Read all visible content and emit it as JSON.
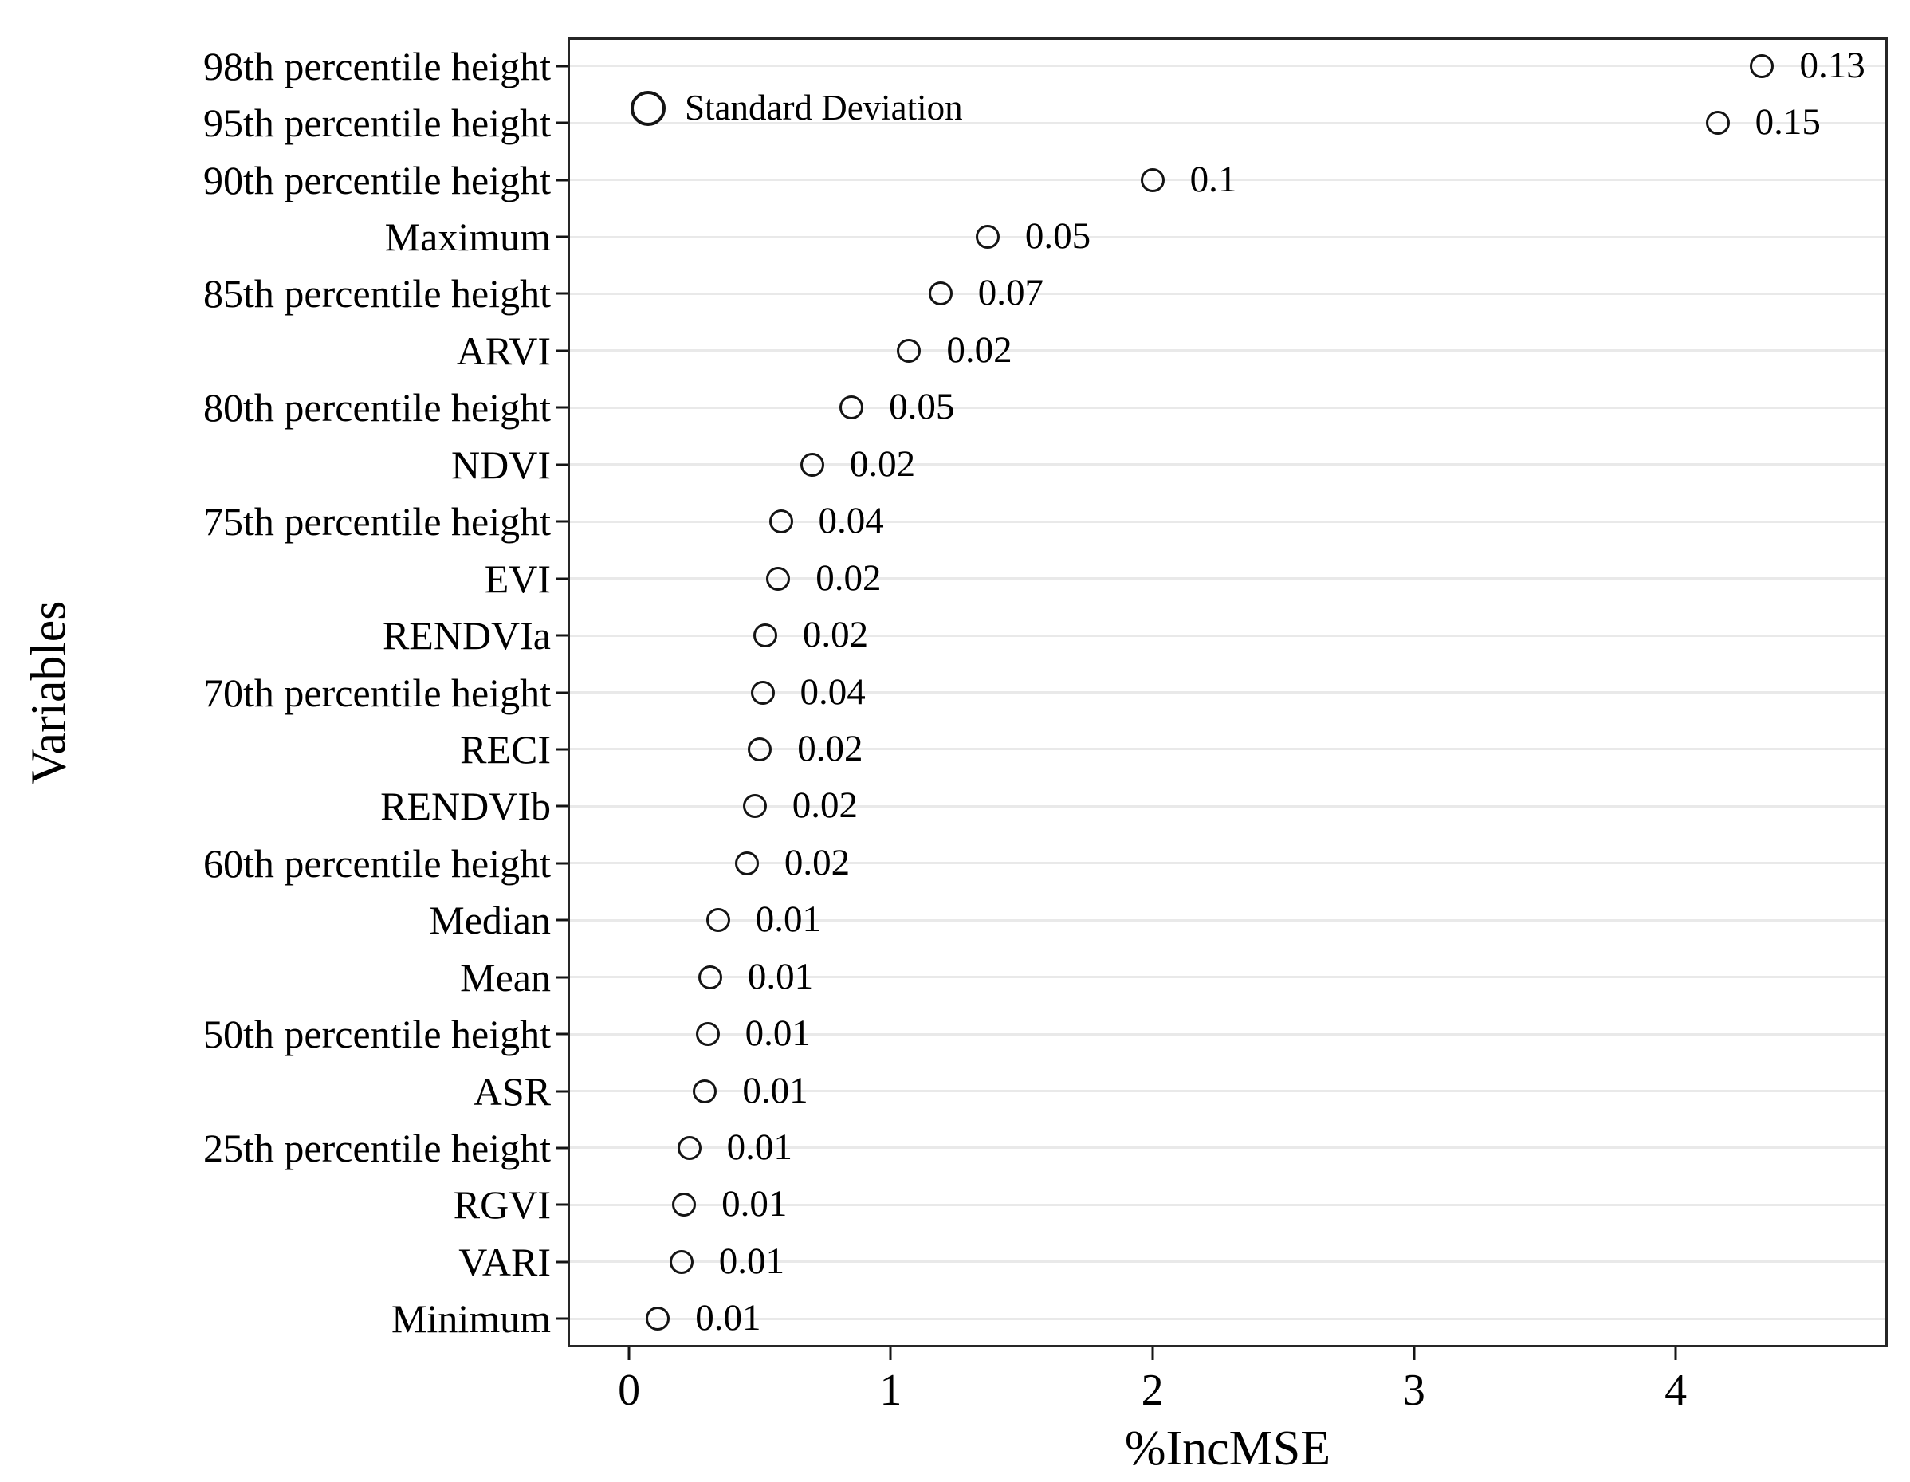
{
  "chart_data": {
    "type": "scatter",
    "title": "",
    "xlabel": "%IncMSE",
    "ylabel": "Variables",
    "xlim": [
      -0.235,
      4.81
    ],
    "x_ticks": [
      "0",
      "1",
      "2",
      "3",
      "4"
    ],
    "grid": "horizontal-only",
    "legend": {
      "label": "Standard Deviation",
      "position": "top-left-inside",
      "marker": "open-circle"
    },
    "marker_style": "open-circle",
    "points": [
      {
        "variable": "98th percentile height",
        "inc_mse": 4.33,
        "sd_label": "0.13"
      },
      {
        "variable": "95th percentile height",
        "inc_mse": 4.16,
        "sd_label": "0.15"
      },
      {
        "variable": "90th percentile height",
        "inc_mse": 2.0,
        "sd_label": "0.1"
      },
      {
        "variable": "Maximum",
        "inc_mse": 1.37,
        "sd_label": "0.05"
      },
      {
        "variable": "85th percentile height",
        "inc_mse": 1.19,
        "sd_label": "0.07"
      },
      {
        "variable": "ARVI",
        "inc_mse": 1.07,
        "sd_label": "0.02"
      },
      {
        "variable": "80th percentile height",
        "inc_mse": 0.85,
        "sd_label": "0.05"
      },
      {
        "variable": "NDVI",
        "inc_mse": 0.7,
        "sd_label": "0.02"
      },
      {
        "variable": "75th percentile height",
        "inc_mse": 0.58,
        "sd_label": "0.04"
      },
      {
        "variable": "EVI",
        "inc_mse": 0.57,
        "sd_label": "0.02"
      },
      {
        "variable": "RENDVIa",
        "inc_mse": 0.52,
        "sd_label": "0.02"
      },
      {
        "variable": "70th percentile height",
        "inc_mse": 0.51,
        "sd_label": "0.04"
      },
      {
        "variable": "RECI",
        "inc_mse": 0.5,
        "sd_label": "0.02"
      },
      {
        "variable": "RENDVIb",
        "inc_mse": 0.48,
        "sd_label": "0.02"
      },
      {
        "variable": "60th percentile height",
        "inc_mse": 0.45,
        "sd_label": "0.02"
      },
      {
        "variable": "Median",
        "inc_mse": 0.34,
        "sd_label": "0.01"
      },
      {
        "variable": "Mean",
        "inc_mse": 0.31,
        "sd_label": "0.01"
      },
      {
        "variable": "50th percentile height",
        "inc_mse": 0.3,
        "sd_label": "0.01"
      },
      {
        "variable": "ASR",
        "inc_mse": 0.29,
        "sd_label": "0.01"
      },
      {
        "variable": "25th percentile height",
        "inc_mse": 0.23,
        "sd_label": "0.01"
      },
      {
        "variable": "RGVI",
        "inc_mse": 0.21,
        "sd_label": "0.01"
      },
      {
        "variable": "VARI",
        "inc_mse": 0.2,
        "sd_label": "0.01"
      },
      {
        "variable": "Minimum",
        "inc_mse": 0.11,
        "sd_label": "0.01"
      }
    ]
  },
  "colors": {
    "background": "#ffffff",
    "text": "#000000",
    "marker_stroke": "#141414",
    "panel_border": "#262626",
    "gridline": "#e9e9e9"
  }
}
